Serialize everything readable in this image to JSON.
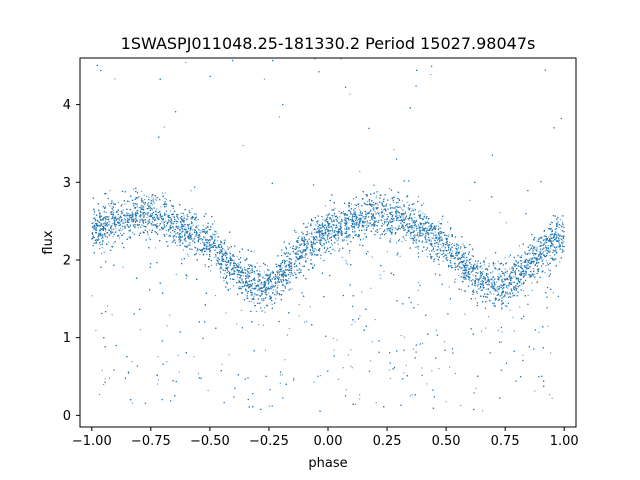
{
  "chart_data": {
    "type": "scatter",
    "title": "1SWASPJ011048.25-181330.2 Period 15027.98047s",
    "xlabel": "phase",
    "ylabel": "flux",
    "xlim": [
      -1.05,
      1.05
    ],
    "ylim": [
      -0.15,
      4.6
    ],
    "xticks": [
      -1.0,
      -0.75,
      -0.5,
      -0.25,
      0.0,
      0.25,
      0.5,
      0.75,
      1.0
    ],
    "xtick_labels": [
      "−1.00",
      "−0.75",
      "−0.50",
      "−0.25",
      "0.00",
      "0.25",
      "0.50",
      "0.75",
      "1.00"
    ],
    "yticks": [
      0,
      1,
      2,
      3,
      4
    ],
    "ytick_labels": [
      "0",
      "1",
      "2",
      "3",
      "4"
    ],
    "grid": false,
    "marker_color": "#1f77b4",
    "series": [
      {
        "x": [
          -1.0,
          -0.9,
          -0.8,
          -0.7,
          -0.6,
          -0.5,
          -0.4,
          -0.3,
          -0.25,
          -0.2,
          -0.1,
          0.0,
          0.1,
          0.2,
          0.3,
          0.4,
          0.5,
          0.6,
          0.7,
          0.75,
          0.8,
          0.9,
          1.0
        ],
        "y": [
          2.4,
          2.5,
          2.6,
          2.55,
          2.4,
          2.2,
          1.9,
          1.65,
          1.65,
          1.8,
          2.15,
          2.35,
          2.5,
          2.6,
          2.55,
          2.4,
          2.15,
          1.85,
          1.65,
          1.65,
          1.8,
          2.1,
          2.35
        ]
      }
    ]
  }
}
